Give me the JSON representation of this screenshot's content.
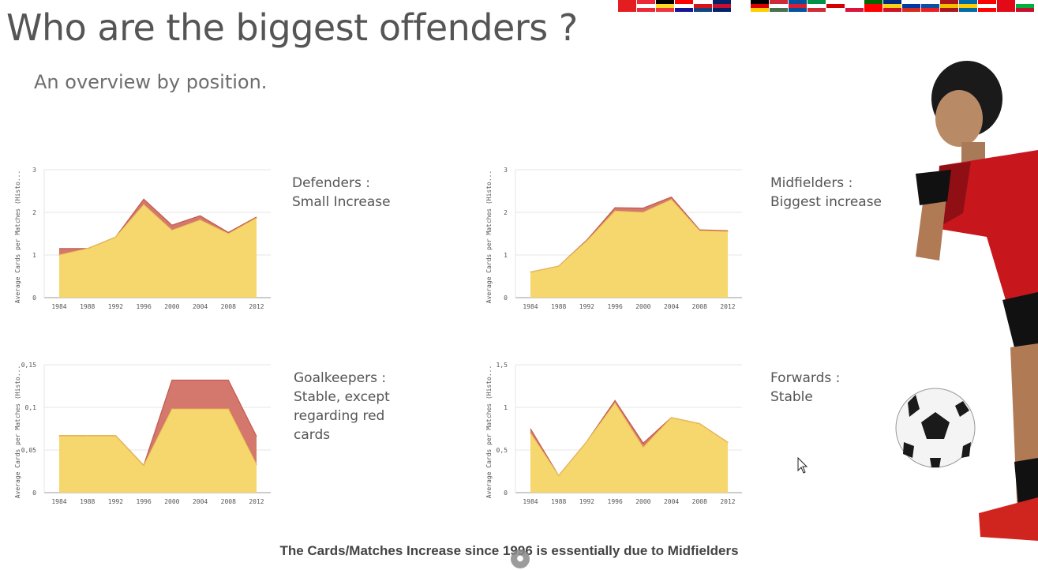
{
  "page": {
    "title": "Who are the biggest offenders ?",
    "subtitle": "An overview by position.",
    "footer": "The Cards/Matches Increase since 1996 is essentially due to Midfielders"
  },
  "colors": {
    "yellow_area": "#f5d76e",
    "red_area": "#d4776d",
    "red_line": "#c45a4f",
    "text": "#555555",
    "axis": "#999999",
    "grid": "#e5e5e5"
  },
  "flags": [
    [
      "#e41e20",
      "#e41e20",
      "#e41e20"
    ],
    [
      "#ed2939",
      "#ffffff",
      "#ed2939"
    ],
    [
      "#000000",
      "#fdda24",
      "#ef3340"
    ],
    [
      "#ff0000",
      "#ffffff",
      "#171796"
    ],
    [
      "#ffffff",
      "#d7141a",
      "#11457e"
    ],
    [
      "#012169",
      "#c8102e",
      "#012169"
    ],
    [
      "#ffffff",
      "#ffffff",
      "#ffffff"
    ],
    [
      "#000000",
      "#dd0000",
      "#ffce00"
    ],
    [
      "#ce2939",
      "#ffffff",
      "#477050"
    ],
    [
      "#02529c",
      "#dc1e35",
      "#02529c"
    ],
    [
      "#009246",
      "#ffffff",
      "#ce2b37"
    ],
    [
      "#ffffff",
      "#d40000",
      "#ffffff"
    ],
    [
      "#ffffff",
      "#ffffff",
      "#dc143c"
    ],
    [
      "#006600",
      "#ff0000",
      "#ff0000"
    ],
    [
      "#002b7f",
      "#fcd116",
      "#ce1126"
    ],
    [
      "#ffffff",
      "#0039a6",
      "#d52b1e"
    ],
    [
      "#ffffff",
      "#0b4ea2",
      "#ee1c25"
    ],
    [
      "#aa151b",
      "#f1bf00",
      "#aa151b"
    ],
    [
      "#006aa7",
      "#fecc00",
      "#006aa7"
    ],
    [
      "#ff0000",
      "#ffffff",
      "#ff0000"
    ],
    [
      "#e30a17",
      "#e30a17",
      "#e30a17"
    ],
    [
      "#ffffff",
      "#00b140",
      "#c8102e"
    ]
  ],
  "chart_data": [
    {
      "id": "defenders",
      "type": "area",
      "ylabel": "Average Cards per Matches (Histo...",
      "x": [
        "1984",
        "1988",
        "1992",
        "1996",
        "2000",
        "2004",
        "2008",
        "2012"
      ],
      "ylim": [
        0,
        3
      ],
      "yticks": [
        "0",
        "1",
        "2",
        "3"
      ],
      "ytick_values": [
        0,
        1,
        2,
        3
      ],
      "series": [
        {
          "values": [
            1.0,
            1.15,
            1.42,
            2.18,
            1.58,
            1.82,
            1.5,
            1.87
          ]
        },
        {
          "values": [
            0.15,
            0.0,
            0.0,
            0.13,
            0.12,
            0.1,
            0.03,
            0.02
          ]
        }
      ],
      "description": [
        "Defenders :",
        "Small Increase"
      ]
    },
    {
      "id": "midfielders",
      "type": "area",
      "ylabel": "Average Cards per Matches (Histo...",
      "x": [
        "1984",
        "1988",
        "1992",
        "1996",
        "2000",
        "2004",
        "2008",
        "2012"
      ],
      "ylim": [
        0,
        3
      ],
      "yticks": [
        "0",
        "1",
        "2",
        "3"
      ],
      "ytick_values": [
        0,
        1,
        2,
        3
      ],
      "series": [
        {
          "values": [
            0.6,
            0.74,
            1.33,
            2.03,
            2.0,
            2.3,
            1.57,
            1.55
          ]
        },
        {
          "values": [
            0.0,
            0.0,
            0.02,
            0.08,
            0.1,
            0.06,
            0.02,
            0.02
          ]
        }
      ],
      "description": [
        "Midfielders :",
        "Biggest increase"
      ]
    },
    {
      "id": "goalkeepers",
      "type": "area",
      "ylabel": "Average Cards per Matches (Histo...",
      "x": [
        "1984",
        "1988",
        "1992",
        "1996",
        "2000",
        "2004",
        "2008",
        "2012"
      ],
      "ylim": [
        0,
        0.15
      ],
      "yticks": [
        "0",
        "0,05",
        "0,1",
        "0,15"
      ],
      "ytick_values": [
        0,
        0.05,
        0.1,
        0.15
      ],
      "series": [
        {
          "values": [
            0.067,
            0.067,
            0.067,
            0.032,
            0.098,
            0.098,
            0.098,
            0.033
          ]
        },
        {
          "values": [
            0.0,
            0.0,
            0.0,
            0.0,
            0.034,
            0.034,
            0.034,
            0.033
          ]
        }
      ],
      "description": [
        "Goalkeepers :",
        "Stable, except",
        "regarding red",
        "cards"
      ]
    },
    {
      "id": "forwards",
      "type": "area",
      "ylabel": "Average Cards per Matches (Histo...",
      "x": [
        "1984",
        "1988",
        "1992",
        "1996",
        "2000",
        "2004",
        "2008",
        "2012"
      ],
      "ylim": [
        0,
        1.5
      ],
      "yticks": [
        "0",
        "0,5",
        "1",
        "1,5"
      ],
      "ytick_values": [
        0,
        0.5,
        1,
        1.5
      ],
      "series": [
        {
          "values": [
            0.7,
            0.2,
            0.6,
            1.05,
            0.53,
            0.88,
            0.81,
            0.59
          ]
        },
        {
          "values": [
            0.05,
            0.0,
            0.0,
            0.03,
            0.05,
            0.0,
            0.0,
            0.0
          ]
        }
      ],
      "description": [
        "Forwards :",
        "Stable"
      ]
    }
  ]
}
